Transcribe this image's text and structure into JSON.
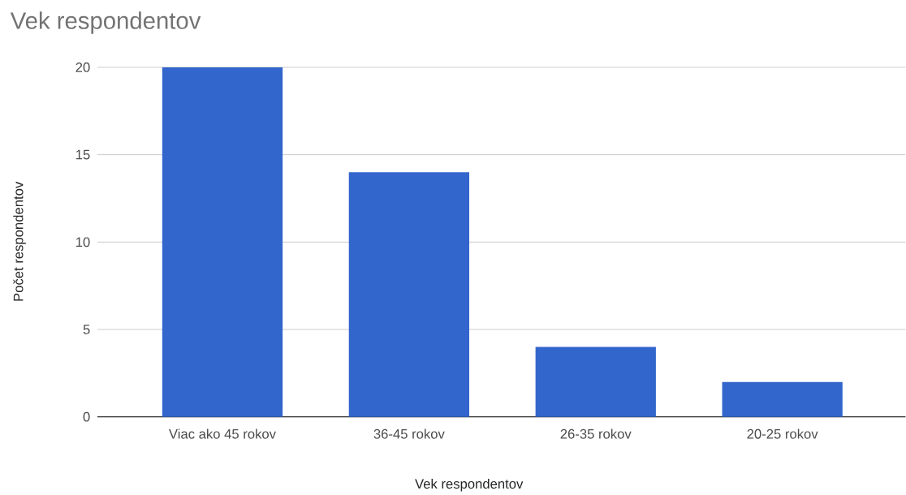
{
  "chart_data": {
    "type": "bar",
    "title": "Vek respondentov",
    "xlabel": "Vek respondentov",
    "ylabel": "Počet respondentov",
    "categories": [
      "Viac ako 45 rokov",
      "36-45 rokov",
      "26-35 rokov",
      "20-25 rokov"
    ],
    "values": [
      20,
      14,
      4,
      2
    ],
    "color": "#3366cc",
    "ylim": [
      0,
      20
    ],
    "yticks": [
      0,
      5,
      10,
      15,
      20
    ],
    "grid": "y"
  }
}
